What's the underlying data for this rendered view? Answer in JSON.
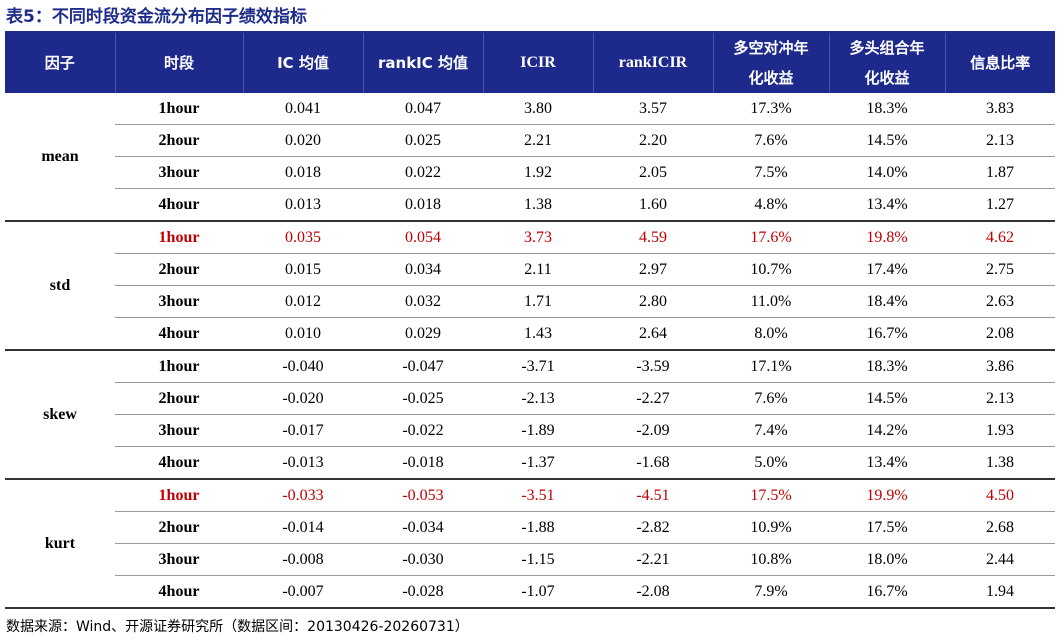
{
  "title": "表5：不同时段资金流分布因子绩效指标",
  "headers": [
    {
      "l1": "因子",
      "l2": ""
    },
    {
      "l1": "时段",
      "l2": ""
    },
    {
      "l1": "IC 均值",
      "l2": ""
    },
    {
      "l1": "rankIC 均值",
      "l2": ""
    },
    {
      "l1": "ICIR",
      "l2": ""
    },
    {
      "l1": "rankICIR",
      "l2": ""
    },
    {
      "l1": "多空对冲年",
      "l2": "化收益"
    },
    {
      "l1": "多头组合年",
      "l2": "化收益"
    },
    {
      "l1": "信息比率",
      "l2": ""
    }
  ],
  "groups": [
    {
      "factor": "mean",
      "rows": [
        {
          "period": "1hour",
          "ic": "0.041",
          "rankic": "0.047",
          "icir": "3.80",
          "rankicir": "3.57",
          "ls": "17.3%",
          "lo": "18.3%",
          "ir": "3.83",
          "highlight": false
        },
        {
          "period": "2hour",
          "ic": "0.020",
          "rankic": "0.025",
          "icir": "2.21",
          "rankicir": "2.20",
          "ls": "7.6%",
          "lo": "14.5%",
          "ir": "2.13",
          "highlight": false
        },
        {
          "period": "3hour",
          "ic": "0.018",
          "rankic": "0.022",
          "icir": "1.92",
          "rankicir": "2.05",
          "ls": "7.5%",
          "lo": "14.0%",
          "ir": "1.87",
          "highlight": false
        },
        {
          "period": "4hour",
          "ic": "0.013",
          "rankic": "0.018",
          "icir": "1.38",
          "rankicir": "1.60",
          "ls": "4.8%",
          "lo": "13.4%",
          "ir": "1.27",
          "highlight": false
        }
      ]
    },
    {
      "factor": "std",
      "rows": [
        {
          "period": "1hour",
          "ic": "0.035",
          "rankic": "0.054",
          "icir": "3.73",
          "rankicir": "4.59",
          "ls": "17.6%",
          "lo": "19.8%",
          "ir": "4.62",
          "highlight": true
        },
        {
          "period": "2hour",
          "ic": "0.015",
          "rankic": "0.034",
          "icir": "2.11",
          "rankicir": "2.97",
          "ls": "10.7%",
          "lo": "17.4%",
          "ir": "2.75",
          "highlight": false
        },
        {
          "period": "3hour",
          "ic": "0.012",
          "rankic": "0.032",
          "icir": "1.71",
          "rankicir": "2.80",
          "ls": "11.0%",
          "lo": "18.4%",
          "ir": "2.63",
          "highlight": false
        },
        {
          "period": "4hour",
          "ic": "0.010",
          "rankic": "0.029",
          "icir": "1.43",
          "rankicir": "2.64",
          "ls": "8.0%",
          "lo": "16.7%",
          "ir": "2.08",
          "highlight": false
        }
      ]
    },
    {
      "factor": "skew",
      "rows": [
        {
          "period": "1hour",
          "ic": "-0.040",
          "rankic": "-0.047",
          "icir": "-3.71",
          "rankicir": "-3.59",
          "ls": "17.1%",
          "lo": "18.3%",
          "ir": "3.86",
          "highlight": false
        },
        {
          "period": "2hour",
          "ic": "-0.020",
          "rankic": "-0.025",
          "icir": "-2.13",
          "rankicir": "-2.27",
          "ls": "7.6%",
          "lo": "14.5%",
          "ir": "2.13",
          "highlight": false
        },
        {
          "period": "3hour",
          "ic": "-0.017",
          "rankic": "-0.022",
          "icir": "-1.89",
          "rankicir": "-2.09",
          "ls": "7.4%",
          "lo": "14.2%",
          "ir": "1.93",
          "highlight": false
        },
        {
          "period": "4hour",
          "ic": "-0.013",
          "rankic": "-0.018",
          "icir": "-1.37",
          "rankicir": "-1.68",
          "ls": "5.0%",
          "lo": "13.4%",
          "ir": "1.38",
          "highlight": false
        }
      ]
    },
    {
      "factor": "kurt",
      "rows": [
        {
          "period": "1hour",
          "ic": "-0.033",
          "rankic": "-0.053",
          "icir": "-3.51",
          "rankicir": "-4.51",
          "ls": "17.5%",
          "lo": "19.9%",
          "ir": "4.50",
          "highlight": true
        },
        {
          "period": "2hour",
          "ic": "-0.014",
          "rankic": "-0.034",
          "icir": "-1.88",
          "rankicir": "-2.82",
          "ls": "10.9%",
          "lo": "17.5%",
          "ir": "2.68",
          "highlight": false
        },
        {
          "period": "3hour",
          "ic": "-0.008",
          "rankic": "-0.030",
          "icir": "-1.15",
          "rankicir": "-2.21",
          "ls": "10.8%",
          "lo": "18.0%",
          "ir": "2.44",
          "highlight": false
        },
        {
          "period": "4hour",
          "ic": "-0.007",
          "rankic": "-0.028",
          "icir": "-1.07",
          "rankicir": "-2.08",
          "ls": "7.9%",
          "lo": "16.7%",
          "ir": "1.94",
          "highlight": false
        }
      ]
    }
  ],
  "source": "数据来源：Wind、开源证券研究所（数据区间：20130426-20260731）",
  "colors": {
    "header_bg": "#1d2a8c",
    "title": "#1f2d8a",
    "highlight": "#c00000"
  }
}
